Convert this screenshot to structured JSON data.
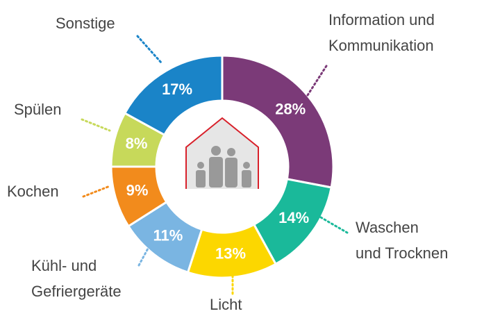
{
  "chart_data": {
    "type": "pie",
    "categories": [
      "Information und\nKommunikation",
      "Waschen\nund Trocknen",
      "Licht",
      "Kühl- und\nGefriergeräte",
      "Kochen",
      "Spülen",
      "Sonstige"
    ],
    "values": [
      28,
      14,
      13,
      11,
      9,
      8,
      17
    ],
    "value_labels": [
      "28%",
      "14%",
      "13%",
      "11%",
      "9%",
      "8%",
      "17%"
    ],
    "colors": [
      "#7b3a78",
      "#1ab99a",
      "#fcd700",
      "#7ab5e2",
      "#f28b1c",
      "#c7d95a",
      "#1a84c8"
    ]
  }
}
